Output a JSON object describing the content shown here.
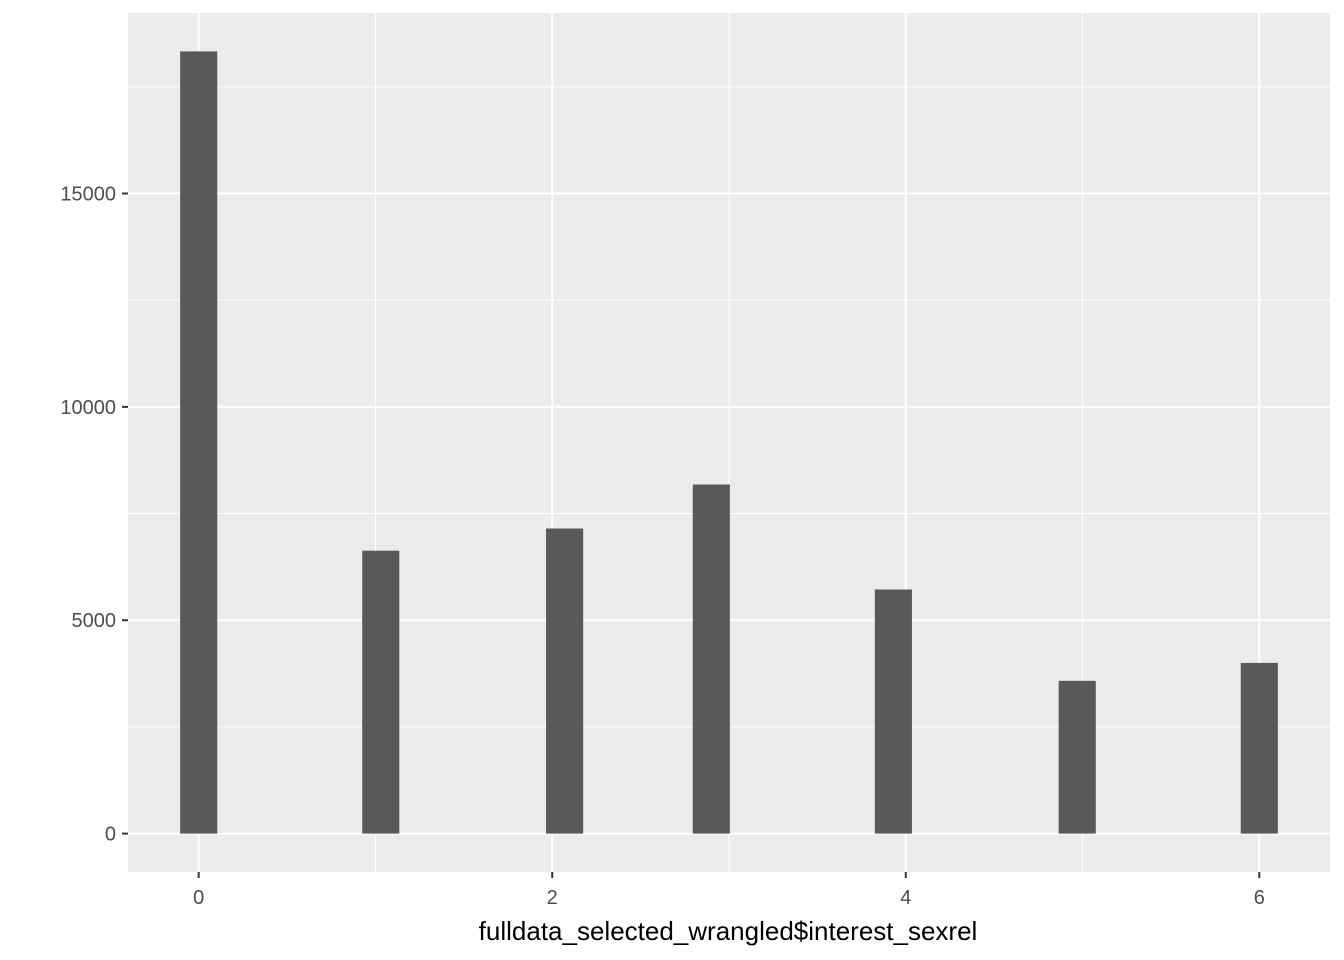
{
  "chart_data": {
    "type": "bar",
    "title": "",
    "xlabel": "fulldata_selected_wrangled$interest_sexrel",
    "ylabel": "",
    "x": [
      0,
      1.03,
      2.07,
      2.9,
      3.93,
      4.97,
      6
    ],
    "values": [
      18330,
      6630,
      7150,
      8180,
      5720,
      3580,
      4000
    ],
    "xlim": [
      -0.4,
      6.4
    ],
    "ylim": [
      -900,
      19230
    ],
    "xticks": [
      0,
      2,
      4,
      6
    ],
    "xtick_labels": [
      "0",
      "2",
      "4",
      "6"
    ],
    "yticks": [
      0,
      5000,
      10000,
      15000
    ],
    "ytick_labels": [
      "0",
      "5000",
      "10000",
      "15000"
    ],
    "grid": true,
    "colors": {
      "panel_background": "#ebebeb",
      "grid_line": "#ffffff",
      "bar_fill": "#595959",
      "tick_mark": "#333333",
      "tick_text": "#4d4d4d",
      "axis_title": "#000000"
    }
  }
}
